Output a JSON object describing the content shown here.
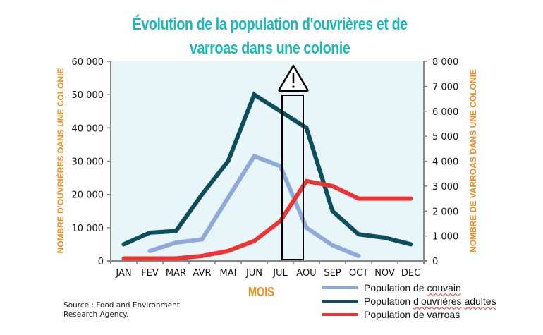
{
  "chart_data": {
    "type": "line",
    "title": "Évolution de la population d'ouvrières et de varroas dans une colonie",
    "title_lines": [
      "Évolution de la population d'ouvrières et de",
      "varroas dans une colonie"
    ],
    "xlabel": "MOIS",
    "ylabel_left": "NOMBRE D'OUVRIÈRES DANS UNE COLONIE",
    "ylabel_right": "NOMBRE DE VARROAS DANS UNE COLONIE",
    "categories": [
      "JAN",
      "FEV",
      "MAR",
      "AVR",
      "MAI",
      "JUN",
      "JUL",
      "AOU",
      "SEP",
      "OCT",
      "NOV",
      "DEC"
    ],
    "ylim_left": [
      0,
      60000
    ],
    "ylim_right": [
      0,
      8000
    ],
    "yticks_left": [
      "0",
      "10 000",
      "20 000",
      "30 000",
      "40 000",
      "50 000",
      "60 000"
    ],
    "yticks_right": [
      "0",
      "1 000",
      "2 000",
      "3 000",
      "4 000",
      "5 000",
      "6 000",
      "7 000",
      "8 000"
    ],
    "grid": false,
    "legend_position": "bottom-right",
    "series": [
      {
        "name": "Population de couvain",
        "axis": "left",
        "color": "#8eaadc",
        "values": [
          null,
          3000,
          5500,
          6500,
          19000,
          31500,
          28500,
          10000,
          4700,
          1500,
          null,
          null
        ]
      },
      {
        "name": "Population d’ouvrières adultes",
        "axis": "left",
        "color": "#0b4f5c",
        "values": [
          5000,
          8500,
          9000,
          20000,
          30000,
          50000,
          45000,
          40000,
          15000,
          8000,
          7000,
          5000
        ]
      },
      {
        "name": "Population de varroas",
        "axis": "right",
        "color": "#ee3333",
        "values": [
          100,
          100,
          100,
          200,
          400,
          800,
          1600,
          3200,
          3000,
          2500,
          2500,
          2500
        ]
      }
    ],
    "annotations": [
      {
        "type": "warning-icon",
        "month": "JUL-AOU",
        "text": "!"
      },
      {
        "type": "highlight-rectangle",
        "month_range": [
          "JUL",
          "AOU"
        ]
      }
    ]
  },
  "source": {
    "line1": "Source : Food and Environment",
    "line2": "Research Agency."
  },
  "colors": {
    "title": "#1ab8b8",
    "axis_titles": "#f28a1e",
    "plot_background": "#e8f6fa"
  }
}
